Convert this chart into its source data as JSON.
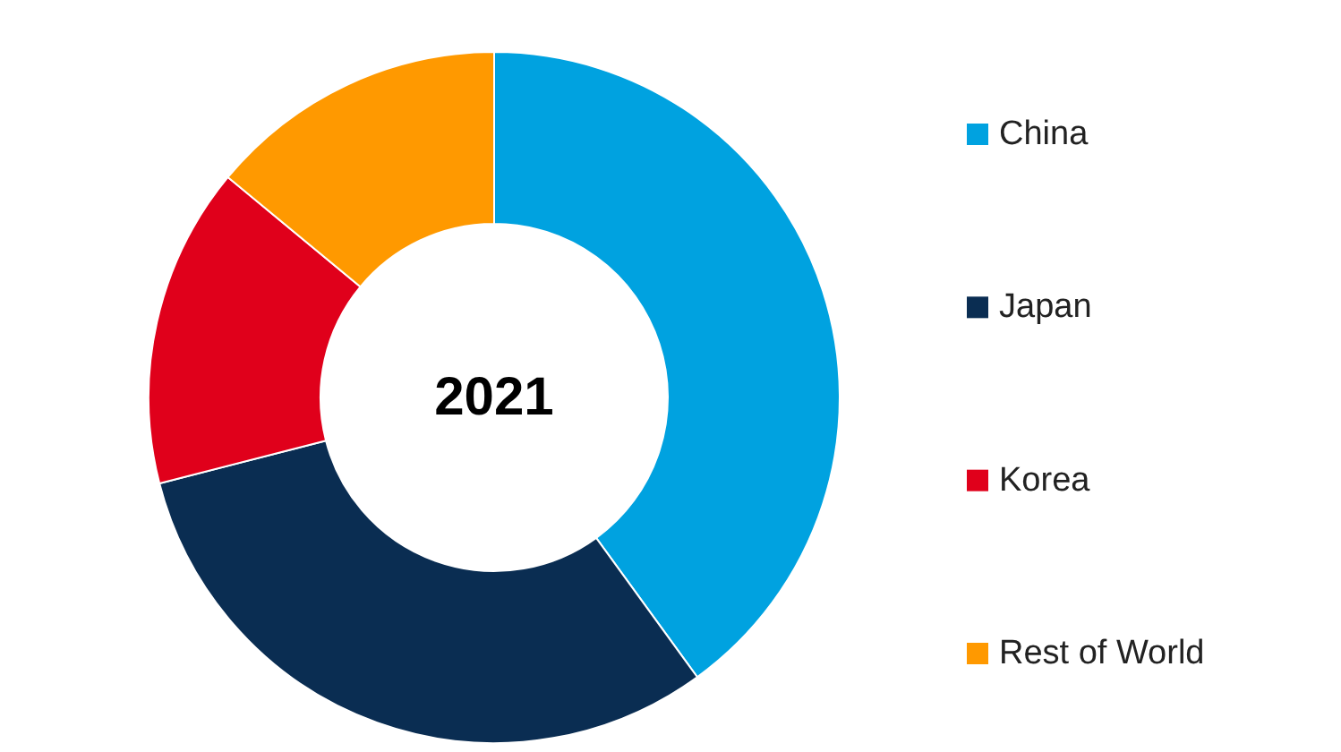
{
  "chart_data": {
    "type": "donut",
    "title": "2021",
    "categories": [
      "China",
      "Japan",
      "Korea",
      "Rest of World"
    ],
    "values": [
      40,
      31,
      15,
      14
    ],
    "colors": [
      "#00a2e0",
      "#0a2d52",
      "#e0001b",
      "#ff9900"
    ],
    "legend": "right"
  }
}
